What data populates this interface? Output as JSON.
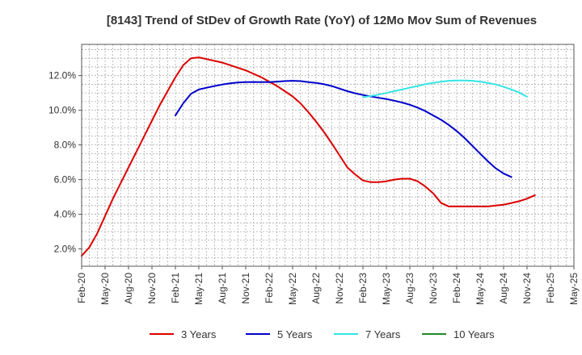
{
  "chart_data": {
    "type": "line",
    "title": "[8143]  Trend of StDev of Growth Rate (YoY) of 12Mo Mov Sum of Revenues",
    "xlabel": "",
    "ylabel": "",
    "ylim": [
      1.0,
      13.8
    ],
    "yticks": [
      2.0,
      4.0,
      6.0,
      8.0,
      10.0,
      12.0
    ],
    "ytick_labels": [
      "2.0%",
      "4.0%",
      "6.0%",
      "8.0%",
      "10.0%",
      "12.0%"
    ],
    "x_start": "Feb-20",
    "x_months": 63,
    "xticks": [
      {
        "index": 0,
        "label": "Feb-20"
      },
      {
        "index": 3,
        "label": "May-20"
      },
      {
        "index": 6,
        "label": "Aug-20"
      },
      {
        "index": 9,
        "label": "Nov-20"
      },
      {
        "index": 12,
        "label": "Feb-21"
      },
      {
        "index": 15,
        "label": "May-21"
      },
      {
        "index": 18,
        "label": "Aug-21"
      },
      {
        "index": 21,
        "label": "Nov-21"
      },
      {
        "index": 24,
        "label": "Feb-22"
      },
      {
        "index": 27,
        "label": "May-22"
      },
      {
        "index": 30,
        "label": "Aug-22"
      },
      {
        "index": 33,
        "label": "Nov-22"
      },
      {
        "index": 36,
        "label": "Feb-23"
      },
      {
        "index": 39,
        "label": "May-23"
      },
      {
        "index": 42,
        "label": "Aug-23"
      },
      {
        "index": 45,
        "label": "Nov-23"
      },
      {
        "index": 48,
        "label": "Feb-24"
      },
      {
        "index": 51,
        "label": "May-24"
      },
      {
        "index": 54,
        "label": "Aug-24"
      },
      {
        "index": 57,
        "label": "Nov-24"
      },
      {
        "index": 60,
        "label": "Feb-25"
      },
      {
        "index": 63,
        "label": "May-25"
      }
    ],
    "grid": true,
    "legend_position": "bottom",
    "series": [
      {
        "name": "3 Years",
        "color": "#dd0000",
        "start": 0,
        "values": [
          1.6,
          2.1,
          2.9,
          3.9,
          4.9,
          5.8,
          6.7,
          7.6,
          8.5,
          9.4,
          10.3,
          11.1,
          11.9,
          12.6,
          13.0,
          13.05,
          12.95,
          12.85,
          12.75,
          12.6,
          12.45,
          12.3,
          12.1,
          11.9,
          11.65,
          11.4,
          11.1,
          10.8,
          10.4,
          9.9,
          9.35,
          8.75,
          8.1,
          7.4,
          6.7,
          6.3,
          5.95,
          5.85,
          5.85,
          5.9,
          6.0,
          6.05,
          6.05,
          5.9,
          5.6,
          5.2,
          4.65,
          4.45,
          4.45,
          4.45,
          4.45,
          4.45,
          4.45,
          4.5,
          4.55,
          4.65,
          4.75,
          4.9,
          5.1
        ]
      },
      {
        "name": "5 Years",
        "color": "#0000cc",
        "start": 12,
        "values": [
          9.7,
          10.4,
          10.95,
          11.2,
          11.3,
          11.4,
          11.48,
          11.55,
          11.6,
          11.62,
          11.63,
          11.62,
          11.62,
          11.65,
          11.68,
          11.7,
          11.68,
          11.62,
          11.58,
          11.5,
          11.4,
          11.25,
          11.1,
          10.98,
          10.88,
          10.8,
          10.72,
          10.65,
          10.55,
          10.45,
          10.32,
          10.15,
          9.95,
          9.7,
          9.45,
          9.15,
          8.8,
          8.4,
          7.95,
          7.5,
          7.05,
          6.65,
          6.35,
          6.15
        ]
      },
      {
        "name": "7 Years",
        "color": "#33e5e5",
        "start": 36,
        "values": [
          10.75,
          10.82,
          10.9,
          11.0,
          11.1,
          11.2,
          11.3,
          11.4,
          11.5,
          11.58,
          11.65,
          11.7,
          11.72,
          11.72,
          11.7,
          11.65,
          11.58,
          11.48,
          11.35,
          11.2,
          11.02,
          10.78
        ]
      },
      {
        "name": "10 Years",
        "color": "#228b22",
        "start": 0,
        "values": []
      }
    ]
  }
}
